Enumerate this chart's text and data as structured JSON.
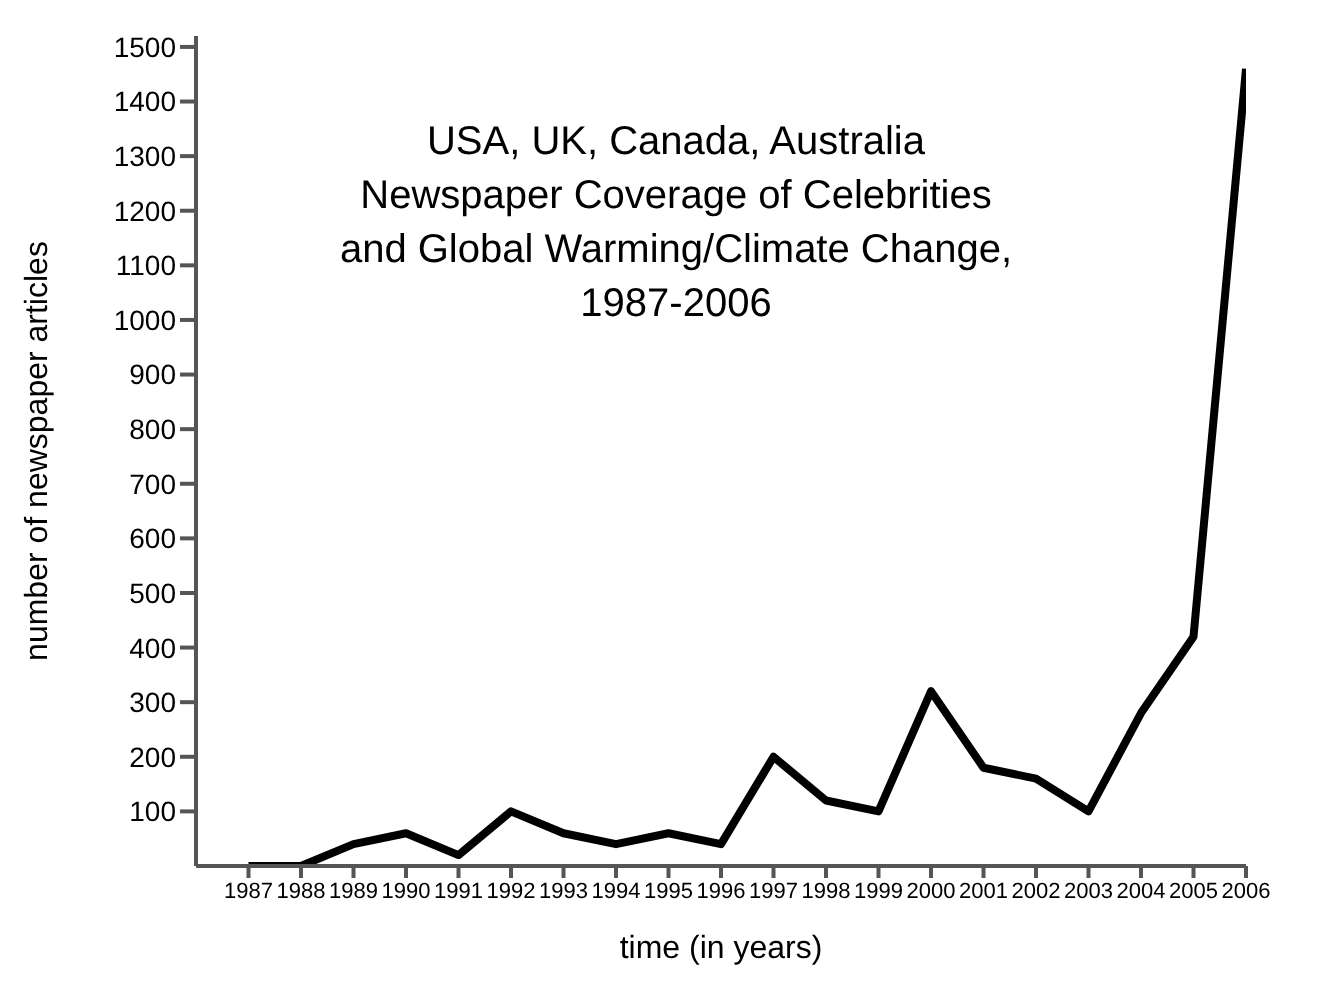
{
  "chart_data": {
    "type": "line",
    "title": "USA, UK, Canada, Australia\nNewspaper Coverage of Celebrities\nand Global Warming/Climate Change,\n1987-2006",
    "xlabel": "time (in years)",
    "ylabel": "number of newspaper articles",
    "x": [
      1987,
      1988,
      1989,
      1990,
      1991,
      1992,
      1993,
      1994,
      1995,
      1996,
      1997,
      1998,
      1999,
      2000,
      2001,
      2002,
      2003,
      2004,
      2005,
      2006
    ],
    "series": [
      {
        "color": "#000000",
        "values": [
          0,
          0,
          40,
          60,
          20,
          100,
          60,
          40,
          60,
          40,
          200,
          120,
          100,
          320,
          180,
          160,
          100,
          280,
          420,
          1460
        ]
      }
    ],
    "xlim": [
      1986,
      2006
    ],
    "xticks": [
      1987,
      1988,
      1989,
      1990,
      1991,
      1992,
      1993,
      1994,
      1995,
      1996,
      1997,
      1998,
      1999,
      2000,
      2001,
      2002,
      2003,
      2004,
      2005,
      2006
    ],
    "ylim": [
      0,
      1520
    ],
    "yticks": [
      100,
      200,
      300,
      400,
      500,
      600,
      700,
      800,
      900,
      1000,
      1100,
      1200,
      1300,
      1400,
      1500
    ],
    "grid": false,
    "legend": false,
    "marker": "none",
    "line_style": "solid"
  }
}
